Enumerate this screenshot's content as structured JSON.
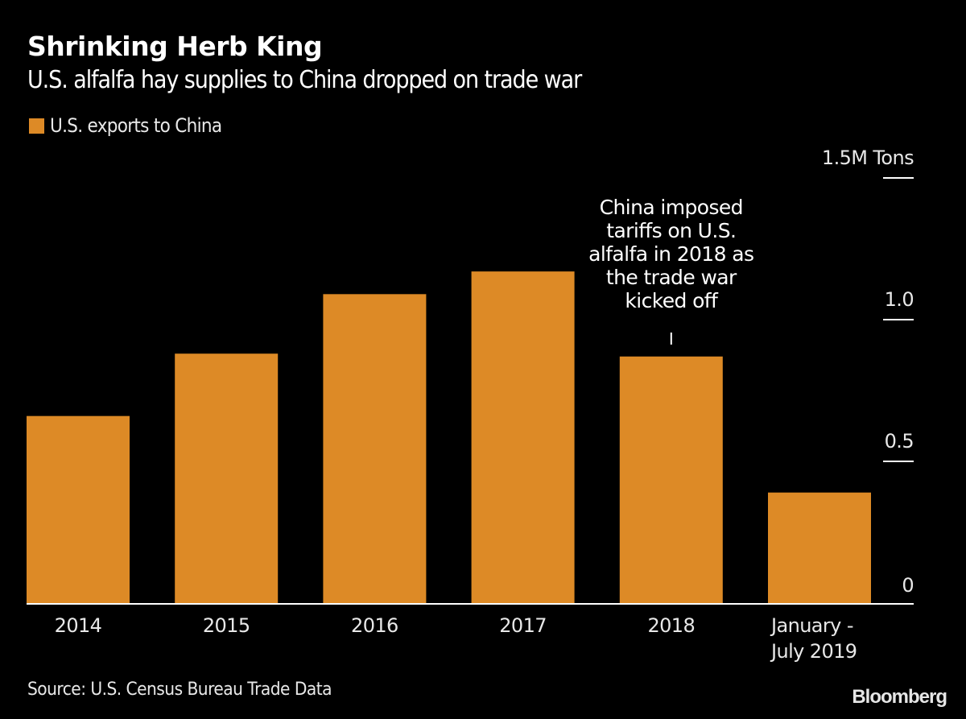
{
  "header": {
    "title": "Shrinking Herb King",
    "subtitle": "U.S. alfalfa hay supplies to China dropped on trade war"
  },
  "legend": {
    "label": "U.S. exports to China",
    "color": "#DD8A26"
  },
  "annotation": {
    "category": "2018",
    "lines": [
      "China imposed",
      "tariffs on U.S.",
      "alfalfa in 2018 as",
      "the trade war",
      "kicked off"
    ]
  },
  "footer": {
    "source": "Source: U.S. Census Bureau Trade Data",
    "brand": "Bloomberg"
  },
  "colors": {
    "background": "#000000",
    "bar": "#DD8A26",
    "axis": "#FFFFFF",
    "text": "#E8E8E8"
  },
  "chart_data": {
    "type": "bar",
    "title": "Shrinking Herb King",
    "subtitle": "U.S. alfalfa hay supplies to China dropped on trade war",
    "categories": [
      "2014",
      "2015",
      "2016",
      "2017",
      "2018",
      "January - July 2019"
    ],
    "category_labels": [
      [
        "2014"
      ],
      [
        "2015"
      ],
      [
        "2016"
      ],
      [
        "2017"
      ],
      [
        "2018"
      ],
      [
        "January -",
        "July 2019"
      ]
    ],
    "series": [
      {
        "name": "U.S. exports to China",
        "values": [
          0.66,
          0.88,
          1.09,
          1.17,
          0.87,
          0.39
        ],
        "color": "#DD8A26"
      }
    ],
    "xlabel": "",
    "ylabel": "M Tons",
    "ylim": [
      0,
      1.5
    ],
    "yticks": [
      0,
      0.5,
      1.0,
      1.5
    ],
    "ytick_labels": [
      "0",
      "0.5",
      "1.0",
      "1.5M Tons"
    ],
    "y_axis_side": "right",
    "grid": false,
    "legend_position": "top-left"
  }
}
